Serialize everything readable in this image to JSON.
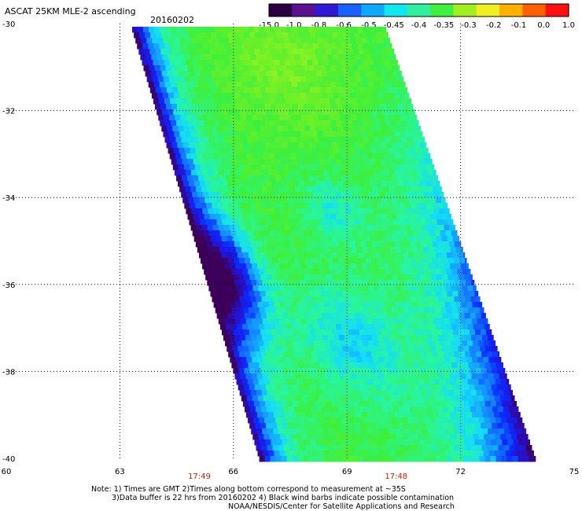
{
  "chart_data": {
    "type": "heatmap",
    "title": "ASCAT 25KM MLE-2 ascending",
    "date": "20160202",
    "x_ticks": [
      "60",
      "63",
      "66",
      "69",
      "72",
      "75"
    ],
    "x_tick_values": [
      60,
      63,
      66,
      69,
      72,
      75
    ],
    "y_ticks": [
      "-30",
      "-32",
      "-34",
      "-36",
      "-38",
      "-40"
    ],
    "y_tick_values": [
      -30,
      -32,
      -34,
      -36,
      -38,
      -40
    ],
    "xlim": [
      60,
      75
    ],
    "ylim": [
      -40,
      -30
    ],
    "grid": true,
    "gridlines_lon": [
      63,
      66,
      69,
      72
    ],
    "gridlines_lat": [
      -32,
      -34,
      -36,
      -38
    ],
    "colorbar": {
      "labels": [
        "-15.0",
        "-1.0",
        "-0.8",
        "-0.6",
        "-0.5",
        "-0.45",
        "-0.4",
        "-0.35",
        "-0.3",
        "-0.2",
        "-0.1",
        "0.0",
        "1.0"
      ],
      "colors": [
        "#2a0040",
        "#5a1090",
        "#3018d8",
        "#1860ff",
        "#10a8ff",
        "#10e8f0",
        "#30f0a0",
        "#40f040",
        "#a0f020",
        "#f0f020",
        "#ffb000",
        "#ff6000",
        "#ff1010"
      ]
    },
    "swath": {
      "top_left_lon": 63.3,
      "top_right_lon": 70.0,
      "bottom_left_lon": 66.7,
      "bottom_right_lon": 74.0
    },
    "time_labels": [
      {
        "text": "17:49",
        "lon": 65.1
      },
      {
        "text": "17:48",
        "lon": 70.3
      }
    ]
  },
  "notes": [
    "Note: 1) Times are GMT 2)Times along bottom correspond to measurement at ~35S",
    "3)Data buffer is 22 hrs from 20160202 4) Black wind barbs indicate possible contamination",
    "NOAA/NESDIS/Center for Satellite Applications and Research"
  ]
}
